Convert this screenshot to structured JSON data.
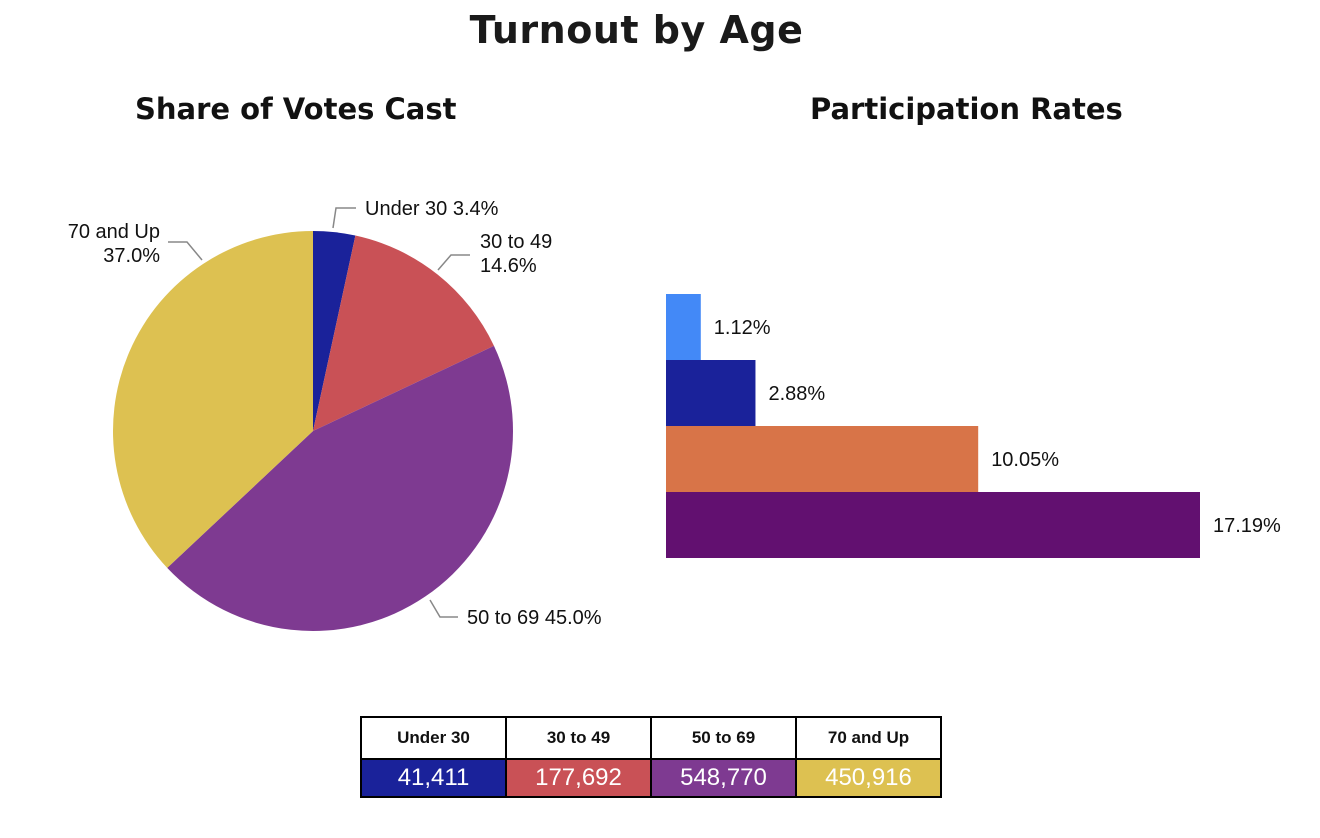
{
  "title": "Turnout by Age",
  "chart_data": [
    {
      "type": "pie",
      "title": "Share of Votes Cast",
      "categories": [
        "Under 30",
        "30 to 49",
        "50 to 69",
        "70 and Up"
      ],
      "values": [
        3.4,
        14.6,
        45.0,
        37.0
      ],
      "value_labels": [
        "3.4%",
        "14.6%",
        "45.0%",
        "37.0%"
      ],
      "colors": [
        "#1a229a",
        "#c95156",
        "#7e3a91",
        "#ddc151"
      ]
    },
    {
      "type": "bar",
      "orientation": "horizontal",
      "title": "Participation Rates",
      "values": [
        1.12,
        2.88,
        10.05,
        17.19
      ],
      "value_labels": [
        "1.12%",
        "2.88%",
        "10.05%",
        "17.19%"
      ],
      "colors": [
        "#4389f7",
        "#1a229a",
        "#d87448",
        "#621070"
      ]
    },
    {
      "type": "table",
      "headers": [
        "Under 30",
        "30 to 49",
        "50 to 69",
        "70 and Up"
      ],
      "values": [
        "41,411",
        "177,692",
        "548,770",
        "450,916"
      ],
      "colors": [
        "#1a229a",
        "#c95156",
        "#7e3a91",
        "#ddc151"
      ]
    }
  ]
}
